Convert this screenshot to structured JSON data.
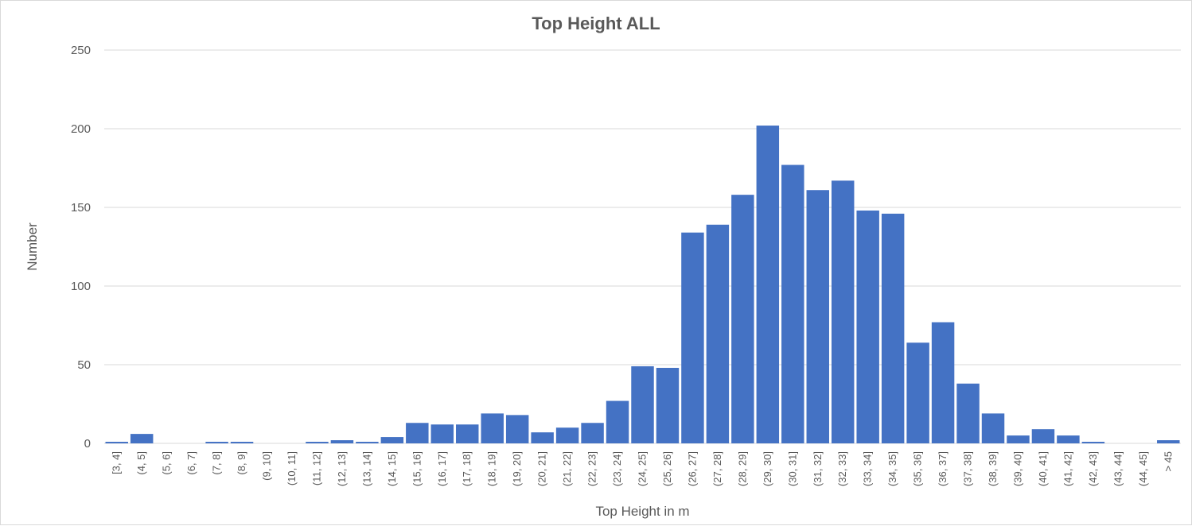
{
  "chart_data": {
    "type": "bar",
    "title": "Top Height ALL",
    "xlabel": "Top Height in m",
    "ylabel": "Number",
    "ylim": [
      0,
      250
    ],
    "yticks": [
      0,
      50,
      100,
      150,
      200,
      250
    ],
    "grid": true,
    "legend": "none",
    "bar_color": "#4472C4",
    "categories": [
      "[3, 4]",
      "(4, 5]",
      "(5, 6]",
      "(6, 7]",
      "(7, 8]",
      "(8, 9]",
      "(9, 10]",
      "(10, 11]",
      "(11, 12]",
      "(12, 13]",
      "(13, 14]",
      "(14, 15]",
      "(15, 16]",
      "(16, 17]",
      "(17, 18]",
      "(18, 19]",
      "(19, 20]",
      "(20, 21]",
      "(21, 22]",
      "(22, 23]",
      "(23, 24]",
      "(24, 25]",
      "(25, 26]",
      "(26, 27]",
      "(27, 28]",
      "(28, 29]",
      "(29, 30]",
      "(30, 31]",
      "(31, 32]",
      "(32, 33]",
      "(33, 34]",
      "(34, 35]",
      "(35, 36]",
      "(36, 37]",
      "(37, 38]",
      "(38, 39]",
      "(39, 40]",
      "(40, 41]",
      "(41, 42]",
      "(42, 43]",
      "(43, 44]",
      "(44, 45]",
      "> 45"
    ],
    "values": [
      1,
      6,
      0,
      0,
      1,
      1,
      0,
      0,
      1,
      2,
      1,
      4,
      13,
      12,
      12,
      19,
      18,
      7,
      10,
      13,
      27,
      49,
      48,
      134,
      139,
      158,
      202,
      177,
      161,
      167,
      148,
      146,
      64,
      77,
      38,
      19,
      5,
      9,
      5,
      1,
      0,
      0,
      2
    ]
  }
}
